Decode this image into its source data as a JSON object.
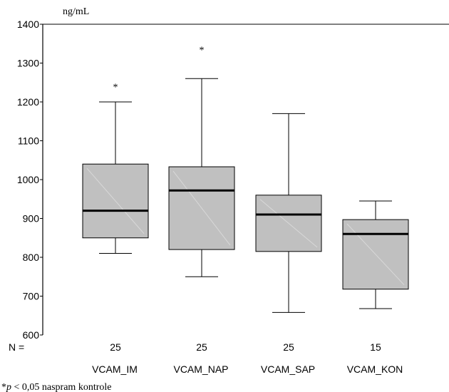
{
  "chart_data": {
    "type": "boxplot",
    "ylabel": "ng/mL",
    "ylim": [
      600,
      1400
    ],
    "yticks": [
      600,
      700,
      800,
      900,
      1000,
      1100,
      1200,
      1300,
      1400
    ],
    "n_label": "N =",
    "categories": [
      "VCAM_IM",
      "VCAM_NAP",
      "VCAM_SAP",
      "VCAM_KON"
    ],
    "n_values": [
      "25",
      "25",
      "25",
      "15"
    ],
    "boxes": [
      {
        "name": "VCAM_IM",
        "whisker_low": 810,
        "q1": 850,
        "median": 920,
        "q3": 1040,
        "whisker_high": 1200,
        "outlier_marker": "*",
        "marker_value": 1245
      },
      {
        "name": "VCAM_NAP",
        "whisker_low": 750,
        "q1": 820,
        "median": 972,
        "q3": 1033,
        "whisker_high": 1260,
        "outlier_marker": "*",
        "marker_value": 1340
      },
      {
        "name": "VCAM_SAP",
        "whisker_low": 658,
        "q1": 815,
        "median": 910,
        "q3": 960,
        "whisker_high": 1170,
        "outlier_marker": "",
        "marker_value": null
      },
      {
        "name": "VCAM_KON",
        "whisker_low": 668,
        "q1": 718,
        "median": 860,
        "q3": 897,
        "whisker_high": 945,
        "outlier_marker": "",
        "marker_value": null
      }
    ],
    "box_fill": "#c0c0c0",
    "footnote": {
      "prefix": "*",
      "pvar": "p",
      "rest": " < 0,05 naspram kontrole"
    }
  }
}
